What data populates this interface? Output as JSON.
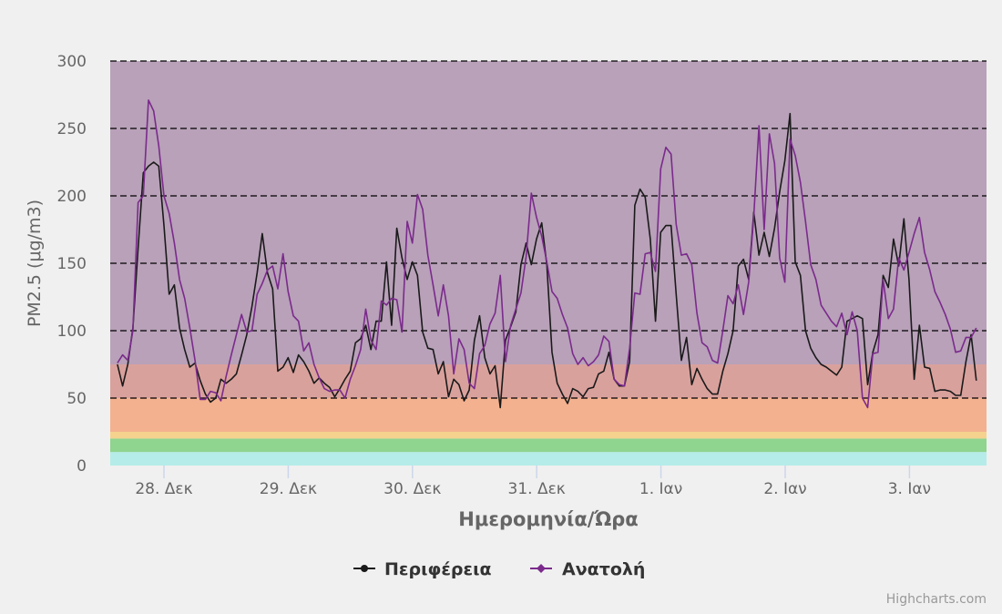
{
  "chart_data": {
    "type": "line",
    "title": "",
    "xlabel": "Ημερομηνία/Ώρα",
    "ylabel": "PM2.5 (μg/m3)",
    "ylim": [
      0,
      300
    ],
    "yticks": [
      "0",
      "50",
      "100",
      "150",
      "200",
      "250",
      "300"
    ],
    "xticks": [
      "28. Δεκ",
      "29. Δεκ",
      "30. Δεκ",
      "31. Δεκ",
      "1. Ιαν",
      "2. Ιαν",
      "3. Ιαν"
    ],
    "x_start": "27 Δεκ 15:00",
    "interval_hours": 1,
    "grid": "dashed horizontal",
    "legend": "bottom-center",
    "plot_bands": [
      {
        "from": 0,
        "to": 10,
        "color": "#b5ece9"
      },
      {
        "from": 10,
        "to": 20,
        "color": "#8fd48f"
      },
      {
        "from": 20,
        "to": 25,
        "color": "#f5d28e"
      },
      {
        "from": 25,
        "to": 50,
        "color": "#f4b18f"
      },
      {
        "from": 50,
        "to": 75,
        "color": "#d9a19c"
      },
      {
        "from": 75,
        "to": 300,
        "color": "#b8a1b9"
      }
    ],
    "series": [
      {
        "name": "Περιφέρεια",
        "color": "#1a1a1a",
        "values": [
          75,
          59,
          75,
          102,
          161,
          217,
          222,
          225,
          222,
          178,
          127,
          134,
          102,
          86,
          73,
          76,
          63,
          53,
          47,
          50,
          64,
          61,
          64,
          68,
          82,
          97,
          118,
          143,
          172,
          143,
          131,
          70,
          73,
          80,
          69,
          82,
          77,
          70,
          61,
          65,
          61,
          58,
          51,
          57,
          64,
          70,
          91,
          94,
          104,
          86,
          107,
          107,
          151,
          104,
          176,
          154,
          138,
          151,
          141,
          99,
          87,
          86,
          68,
          77,
          51,
          64,
          60,
          48,
          56,
          93,
          111,
          80,
          68,
          74,
          43,
          93,
          103,
          114,
          149,
          165,
          149,
          168,
          180,
          149,
          84,
          61,
          53,
          46,
          57,
          55,
          51,
          57,
          58,
          68,
          70,
          84,
          64,
          59,
          59,
          77,
          193,
          205,
          199,
          168,
          107,
          173,
          178,
          178,
          127,
          78,
          95,
          60,
          72,
          64,
          57,
          53,
          53,
          70,
          83,
          100,
          148,
          153,
          138,
          188,
          156,
          173,
          155,
          176,
          203,
          226,
          261,
          151,
          141,
          100,
          87,
          80,
          75,
          73,
          70,
          67,
          73,
          107,
          109,
          111,
          109,
          60,
          84,
          97,
          141,
          132,
          168,
          148,
          183,
          138,
          64,
          104,
          73,
          72,
          55,
          56,
          56,
          55,
          52,
          52,
          77,
          97,
          63
        ]
      },
      {
        "name": "Ανατολή",
        "color": "#7b2a8c",
        "values": [
          76,
          82,
          78,
          100,
          195,
          200,
          271,
          263,
          237,
          200,
          187,
          165,
          138,
          124,
          102,
          78,
          49,
          49,
          55,
          54,
          48,
          66,
          82,
          97,
          112,
          99,
          100,
          127,
          135,
          145,
          148,
          131,
          157,
          129,
          111,
          107,
          85,
          91,
          75,
          65,
          57,
          55,
          56,
          56,
          50,
          64,
          74,
          86,
          116,
          93,
          86,
          122,
          119,
          124,
          123,
          99,
          181,
          165,
          201,
          190,
          156,
          134,
          111,
          134,
          111,
          68,
          94,
          86,
          61,
          57,
          83,
          89,
          105,
          113,
          141,
          77,
          104,
          116,
          128,
          155,
          202,
          184,
          170,
          151,
          129,
          124,
          112,
          102,
          83,
          75,
          80,
          74,
          77,
          82,
          96,
          92,
          64,
          60,
          59,
          87,
          128,
          127,
          157,
          158,
          144,
          220,
          236,
          231,
          179,
          156,
          157,
          149,
          113,
          91,
          88,
          78,
          76,
          100,
          126,
          120,
          134,
          112,
          136,
          185,
          252,
          175,
          246,
          224,
          154,
          136,
          242,
          230,
          210,
          181,
          149,
          138,
          119,
          113,
          107,
          103,
          113,
          97,
          114,
          100,
          50,
          43,
          83,
          84,
          138,
          109,
          116,
          154,
          145,
          158,
          172,
          184,
          158,
          145,
          129,
          121,
          112,
          101,
          84,
          85,
          95,
          95,
          102
        ]
      }
    ]
  },
  "credits": "Highcharts.com"
}
